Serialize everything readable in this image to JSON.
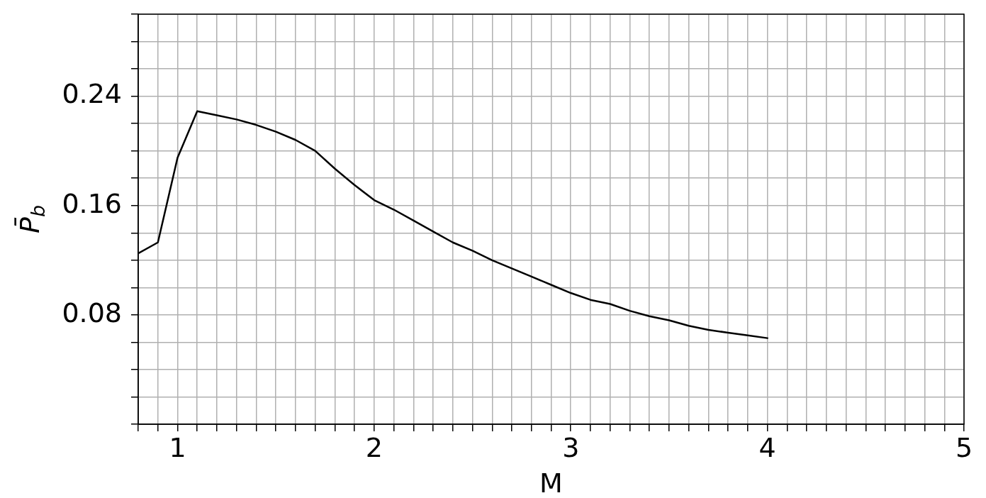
{
  "chart_data": {
    "type": "line",
    "xlabel": "M",
    "ylabel": "P̄$_{b}$",
    "x": [
      0.8,
      0.9,
      1.0,
      1.1,
      1.2,
      1.3,
      1.4,
      1.5,
      1.6,
      1.7,
      1.8,
      1.9,
      2.0,
      2.1,
      2.2,
      2.3,
      2.4,
      2.5,
      2.6,
      2.7,
      2.8,
      2.9,
      3.0,
      3.1,
      3.2,
      3.3,
      3.4,
      3.5,
      3.6,
      3.7,
      3.8,
      3.9,
      4.0
    ],
    "values": [
      0.125,
      0.133,
      0.195,
      0.229,
      0.226,
      0.223,
      0.219,
      0.214,
      0.208,
      0.2,
      0.187,
      0.175,
      0.164,
      0.157,
      0.149,
      0.141,
      0.133,
      0.127,
      0.12,
      0.114,
      0.108,
      0.102,
      0.096,
      0.091,
      0.088,
      0.083,
      0.079,
      0.076,
      0.072,
      0.069,
      0.067,
      0.065,
      0.063
    ],
    "color": "#000000",
    "xlim": [
      0.8,
      5
    ],
    "ylim": [
      0,
      0.3
    ],
    "xticks": [
      {
        "value": 0.8,
        "label": null
      },
      {
        "value": 0.9,
        "label": null
      },
      1,
      {
        "value": 1.1,
        "label": null
      },
      {
        "value": 1.2,
        "label": null
      },
      {
        "value": 1.3,
        "label": null
      },
      {
        "value": 1.4,
        "label": null
      },
      {
        "value": 1.5,
        "label": null
      },
      {
        "value": 1.6,
        "label": null
      },
      {
        "value": 1.7,
        "label": null
      },
      {
        "value": 1.8,
        "label": null
      },
      {
        "value": 1.9,
        "label": null
      },
      2,
      {
        "value": 2.1,
        "label": null
      },
      {
        "value": 2.2,
        "label": null
      },
      {
        "value": 2.3,
        "label": null
      },
      {
        "value": 2.4,
        "label": null
      },
      {
        "value": 2.5,
        "label": null
      },
      {
        "value": 2.6,
        "label": null
      },
      {
        "value": 2.7,
        "label": null
      },
      {
        "value": 2.8,
        "label": null
      },
      {
        "value": 2.9,
        "label": null
      },
      3,
      {
        "value": 3.1,
        "label": null
      },
      {
        "value": 3.2,
        "label": null
      },
      {
        "value": 3.3,
        "label": null
      },
      {
        "value": 3.4,
        "label": null
      },
      {
        "value": 3.5,
        "label": null
      },
      {
        "value": 3.6,
        "label": null
      },
      {
        "value": 3.7,
        "label": null
      },
      {
        "value": 3.8,
        "label": null
      },
      {
        "value": 3.9,
        "label": null
      },
      4,
      {
        "value": 4.1,
        "label": null
      },
      {
        "value": 4.2,
        "label": null
      },
      {
        "value": 4.3,
        "label": null
      },
      {
        "value": 4.4,
        "label": null
      },
      {
        "value": 4.5,
        "label": null
      },
      {
        "value": 4.6,
        "label": null
      },
      {
        "value": 4.7,
        "label": null
      },
      {
        "value": 4.8,
        "label": null
      },
      {
        "value": 4.9,
        "label": null
      },
      5
    ],
    "yticks": [
      {
        "value": 0,
        "label": null
      },
      {
        "value": 0.02,
        "label": null
      },
      {
        "value": 0.04,
        "label": null
      },
      {
        "value": 0.06,
        "label": null
      },
      0.08,
      {
        "value": 0.1,
        "label": null
      },
      {
        "value": 0.12,
        "label": null
      },
      {
        "value": 0.14,
        "label": null
      },
      0.16,
      {
        "value": 0.18,
        "label": null
      },
      {
        "value": 0.2,
        "label": null
      },
      {
        "value": 0.22,
        "label": null
      },
      0.24,
      {
        "value": 0.26,
        "label": null
      },
      {
        "value": 0.28,
        "label": null
      },
      {
        "value": 0.3,
        "label": null
      }
    ],
    "grid": true,
    "marker": "none",
    "line_style": "solid"
  }
}
